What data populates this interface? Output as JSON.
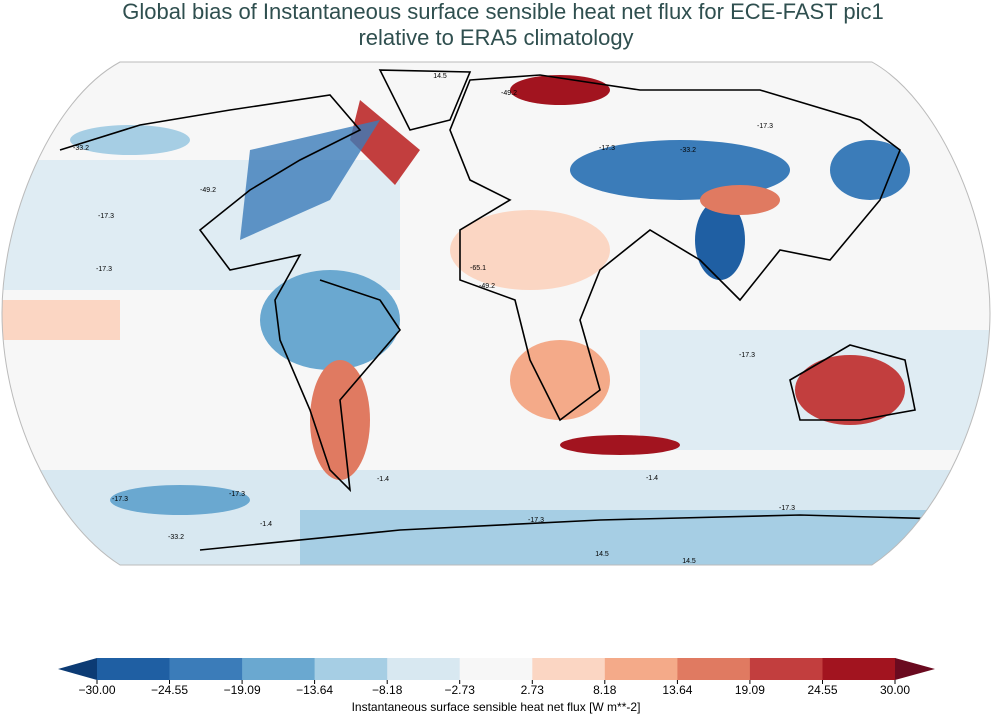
{
  "chart_data": {
    "type": "colorbar",
    "title": [
      "Global bias of Instantaneous surface sensible heat net flux for ECE-FAST pic1",
      "relative to ERA5 climatology"
    ],
    "label": "Instantaneous surface sensible heat net flux [W m**-2]",
    "ticks": [
      {
        "value": -30,
        "label": "−30.00"
      },
      {
        "value": -24.55,
        "label": "−24.55"
      },
      {
        "value": -19.09,
        "label": "−19.09"
      },
      {
        "value": -13.64,
        "label": "−13.64"
      },
      {
        "value": -8.18,
        "label": "−8.18"
      },
      {
        "value": -2.73,
        "label": "−2.73"
      },
      {
        "value": 2.73,
        "label": "2.73"
      },
      {
        "value": 8.18,
        "label": "8.18"
      },
      {
        "value": 13.64,
        "label": "13.64"
      },
      {
        "value": 19.09,
        "label": "19.09"
      },
      {
        "value": 24.55,
        "label": "24.55"
      },
      {
        "value": 30,
        "label": "30.00"
      }
    ],
    "colors": [
      "#1f5fa3",
      "#3b7cb9",
      "#6aa8d0",
      "#a6cee4",
      "#d8e8f1",
      "#f7f7f7",
      "#fbd6c3",
      "#f4aa89",
      "#e07a61",
      "#c23e3e",
      "#a2141f"
    ],
    "extend_colors": [
      "#0c3b74",
      "#6a0a1f"
    ],
    "contour_labels": [
      "-49.2",
      "14.5",
      "-17.3",
      "-33.2",
      "-17.3",
      "-49.2",
      "-17.3",
      "-17.3",
      "-33.2",
      "-65.1",
      "-49.2",
      "-17.3",
      "-1.4",
      "-17.3",
      "-17.3",
      "14.5",
      "14.5",
      "-17.3",
      "-1.4",
      "-33.2",
      "-1.4",
      "-17.3"
    ]
  }
}
